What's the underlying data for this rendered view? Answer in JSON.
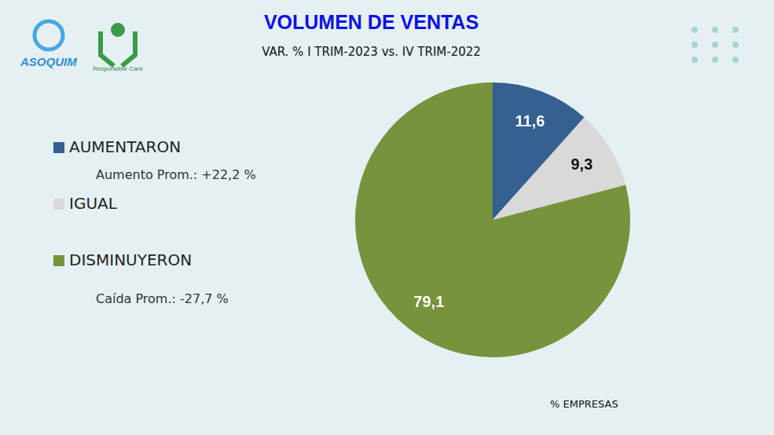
{
  "chart_data": {
    "type": "pie",
    "title": "VOLUMEN DE VENTAS",
    "subtitle": "VAR. % I TRIM-2023 vs. IV TRIM-2022",
    "categories": [
      "AUMENTARON",
      "IGUAL",
      "DISMINUYERON"
    ],
    "values": [
      11.6,
      9.3,
      79.1
    ],
    "value_labels": [
      "11,6",
      "9,3",
      "79,1"
    ],
    "colors": [
      "#35608f",
      "#d9d9d9",
      "#77933c"
    ],
    "data_labels": true,
    "legend": "left",
    "category_notes": [
      {
        "category": "AUMENTARON",
        "text": "Aumento Prom.: +22,2 %"
      },
      {
        "category": "DISMINUYERON",
        "text": "Caída Prom.: -27,7 %"
      }
    ],
    "annotations": [
      "% EMPRESAS"
    ]
  },
  "logos": [
    "ASOQUIM",
    "Responsible Care"
  ]
}
